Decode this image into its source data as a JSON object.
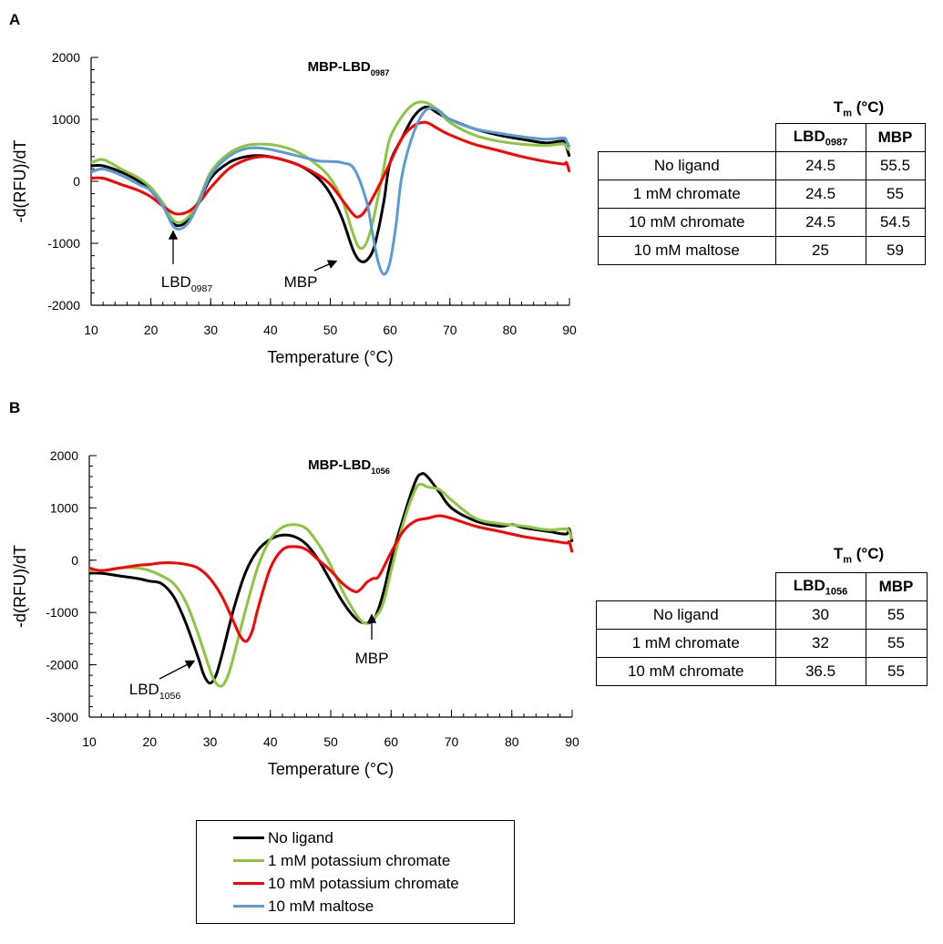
{
  "panels": [
    {
      "letter": "A",
      "table": {
        "title": "T",
        "title_sub": "m",
        "title_rest": " (°C)",
        "col1": "LBD",
        "col1_sub": "0987",
        "col2": "MBP",
        "rows": [
          {
            "label": "No ligand",
            "lbd": "24.5",
            "mbp": "55.5"
          },
          {
            "label": "1 mM  chromate",
            "lbd": "24.5",
            "mbp": "55"
          },
          {
            "label": "10 mM chromate",
            "lbd": "24.5",
            "mbp": "54.5"
          },
          {
            "label": "10 mM maltose",
            "lbd": "25",
            "mbp": "59"
          }
        ]
      }
    },
    {
      "letter": "B",
      "table": {
        "title": "T",
        "title_sub": "m",
        "title_rest": " (°C)",
        "col1": "LBD",
        "col1_sub": "1056",
        "col2": "MBP",
        "rows": [
          {
            "label": "No ligand",
            "lbd": "30",
            "mbp": "55"
          },
          {
            "label": "1 mM  chromate",
            "lbd": "32",
            "mbp": "55"
          },
          {
            "label": "10 mM chromate",
            "lbd": "36.5",
            "mbp": "55"
          }
        ]
      }
    }
  ],
  "legend": [
    {
      "label": "No ligand",
      "color": "#000000"
    },
    {
      "label": "1 mM potassium chromate",
      "color": "#8cc63f"
    },
    {
      "label": "10 mM potassium chromate",
      "color": "#ff0000"
    },
    {
      "label": "10 mM maltose",
      "color": "#5b9bd5"
    }
  ],
  "chart_data": [
    {
      "type": "line",
      "title": "MBP-LBD",
      "title_sub": "0987",
      "xlabel": "Temperature (°C)",
      "ylabel": "-d(RFU)/dT",
      "xlim": [
        10,
        90
      ],
      "ylim": [
        -2000,
        2000
      ],
      "xticks": [
        10,
        20,
        30,
        40,
        50,
        60,
        70,
        80,
        90
      ],
      "yticks": [
        -2000,
        -1000,
        0,
        1000,
        2000
      ],
      "annotations": [
        {
          "text": "LBD",
          "sub": "0987",
          "x": 24,
          "y": -700
        },
        {
          "text": "MBP",
          "sub": "",
          "x": 53,
          "y": -1200
        }
      ],
      "series": [
        {
          "name": "No ligand",
          "color": "#000000",
          "x": [
            10,
            12,
            15,
            18,
            20,
            22,
            24,
            26,
            28,
            30,
            33,
            36,
            39,
            42,
            45,
            48,
            50,
            52,
            54,
            55.5,
            57,
            58,
            59,
            60,
            62,
            64,
            66,
            68,
            70,
            74,
            78,
            82,
            86,
            89,
            89.5,
            90
          ],
          "y": [
            250,
            250,
            150,
            0,
            -150,
            -400,
            -700,
            -650,
            -350,
            50,
            300,
            400,
            410,
            350,
            250,
            50,
            -200,
            -600,
            -1150,
            -1300,
            -1150,
            -800,
            -300,
            300,
            700,
            1050,
            1200,
            1100,
            1000,
            850,
            750,
            680,
            620,
            650,
            550,
            400
          ]
        },
        {
          "name": "1 mM potassium chromate",
          "color": "#8cc63f",
          "x": [
            10,
            12,
            15,
            18,
            20,
            22,
            24,
            26,
            28,
            30,
            33,
            36,
            39,
            42,
            45,
            48,
            50,
            52,
            54,
            55,
            56,
            57,
            58,
            59,
            60,
            62,
            64,
            66,
            68,
            70,
            74,
            78,
            82,
            86,
            89,
            89.5,
            90
          ],
          "y": [
            300,
            350,
            200,
            50,
            -100,
            -350,
            -650,
            -600,
            -300,
            150,
            450,
            580,
            600,
            560,
            450,
            250,
            50,
            -300,
            -900,
            -1080,
            -1000,
            -700,
            -250,
            250,
            700,
            1050,
            1250,
            1270,
            1150,
            950,
            750,
            650,
            600,
            580,
            600,
            550,
            500
          ]
        },
        {
          "name": "10 mM potassium chromate",
          "color": "#ff0000",
          "x": [
            10,
            12,
            15,
            18,
            20,
            22,
            24,
            26,
            28,
            30,
            33,
            36,
            39,
            42,
            45,
            48,
            50,
            52,
            54,
            55,
            56,
            58,
            60,
            62,
            64,
            66,
            68,
            70,
            74,
            78,
            82,
            86,
            89,
            89.5,
            90
          ],
          "y": [
            50,
            50,
            -50,
            -150,
            -250,
            -400,
            -520,
            -500,
            -350,
            -100,
            200,
            350,
            400,
            350,
            250,
            100,
            -50,
            -300,
            -550,
            -560,
            -450,
            -100,
            300,
            700,
            900,
            950,
            850,
            750,
            600,
            500,
            400,
            320,
            280,
            300,
            150
          ]
        },
        {
          "name": "10 mM maltose",
          "color": "#5b9bd5",
          "x": [
            10,
            12,
            15,
            18,
            20,
            22,
            24,
            26,
            28,
            30,
            33,
            36,
            39,
            42,
            45,
            48,
            50,
            52,
            54,
            56,
            57,
            58,
            59,
            60,
            61,
            62,
            64,
            66,
            68,
            70,
            74,
            78,
            82,
            86,
            89,
            89.5,
            90
          ],
          "y": [
            150,
            200,
            100,
            -50,
            -150,
            -400,
            -750,
            -700,
            -350,
            100,
            400,
            530,
            530,
            470,
            400,
            330,
            320,
            300,
            200,
            -300,
            -800,
            -1300,
            -1500,
            -1300,
            -700,
            100,
            800,
            1150,
            1150,
            1000,
            850,
            780,
            720,
            680,
            700,
            650,
            550
          ]
        }
      ]
    },
    {
      "type": "line",
      "title": "MBP-LBD",
      "title_sub": "1056",
      "xlabel": "Temperature (°C)",
      "ylabel": "-d(RFU)/dT",
      "xlim": [
        10,
        90
      ],
      "ylim": [
        -3000,
        2000
      ],
      "xticks": [
        10,
        20,
        30,
        40,
        50,
        60,
        70,
        80,
        90
      ],
      "yticks": [
        -3000,
        -2000,
        -1000,
        0,
        1000,
        2000
      ],
      "annotations": [
        {
          "text": "LBD",
          "sub": "1056",
          "x": 29,
          "y": -2200
        },
        {
          "text": "MBP",
          "sub": "",
          "x": 56,
          "y": -1200
        }
      ],
      "series": [
        {
          "name": "No ligand",
          "color": "#000000",
          "x": [
            10,
            12,
            15,
            18,
            20,
            22,
            24,
            26,
            28,
            29,
            30,
            31,
            32,
            34,
            36,
            38,
            40,
            42,
            44,
            46,
            48,
            50,
            52,
            54,
            55.5,
            57,
            58,
            59,
            60,
            62,
            64,
            65,
            66,
            68,
            70,
            74,
            78,
            80,
            82,
            86,
            89,
            89.5,
            90
          ],
          "y": [
            -250,
            -250,
            -300,
            -350,
            -400,
            -450,
            -700,
            -1200,
            -1850,
            -2200,
            -2350,
            -2200,
            -1800,
            -900,
            -200,
            200,
            400,
            480,
            450,
            300,
            0,
            -400,
            -800,
            -1100,
            -1200,
            -1150,
            -900,
            -500,
            0,
            800,
            1500,
            1650,
            1600,
            1300,
            1000,
            750,
            650,
            680,
            620,
            550,
            500,
            600,
            350
          ]
        },
        {
          "name": "1 mM potassium chromate",
          "color": "#8cc63f",
          "x": [
            10,
            12,
            15,
            18,
            20,
            22,
            24,
            26,
            28,
            30,
            31,
            32,
            33,
            34,
            36,
            38,
            40,
            42,
            44,
            46,
            48,
            50,
            52,
            54,
            55,
            56,
            58,
            59,
            60,
            62,
            64,
            65,
            66,
            68,
            70,
            74,
            78,
            82,
            86,
            89,
            89.5,
            90
          ],
          "y": [
            -200,
            -200,
            -150,
            -150,
            -200,
            -300,
            -450,
            -800,
            -1400,
            -2100,
            -2350,
            -2400,
            -2200,
            -1800,
            -900,
            -100,
            400,
            630,
            680,
            600,
            300,
            -100,
            -600,
            -1000,
            -1150,
            -1200,
            -1000,
            -700,
            -200,
            700,
            1350,
            1450,
            1400,
            1350,
            1150,
            800,
            700,
            650,
            580,
            600,
            550,
            400
          ]
        },
        {
          "name": "10 mM potassium chromate",
          "color": "#ff0000",
          "x": [
            10,
            12,
            15,
            18,
            20,
            22,
            24,
            26,
            28,
            30,
            32,
            34,
            35,
            36,
            37,
            38,
            40,
            42,
            44,
            46,
            48,
            50,
            52,
            54,
            55,
            56,
            57,
            58,
            60,
            62,
            64,
            66,
            68,
            70,
            74,
            78,
            82,
            86,
            89,
            89.5,
            90
          ],
          "y": [
            -150,
            -200,
            -150,
            -100,
            -80,
            -50,
            -50,
            -80,
            -150,
            -350,
            -700,
            -1200,
            -1450,
            -1550,
            -1350,
            -900,
            -150,
            200,
            260,
            200,
            0,
            -200,
            -450,
            -600,
            -550,
            -420,
            -350,
            -300,
            150,
            550,
            750,
            800,
            850,
            800,
            650,
            550,
            450,
            380,
            330,
            350,
            150
          ]
        }
      ]
    }
  ]
}
